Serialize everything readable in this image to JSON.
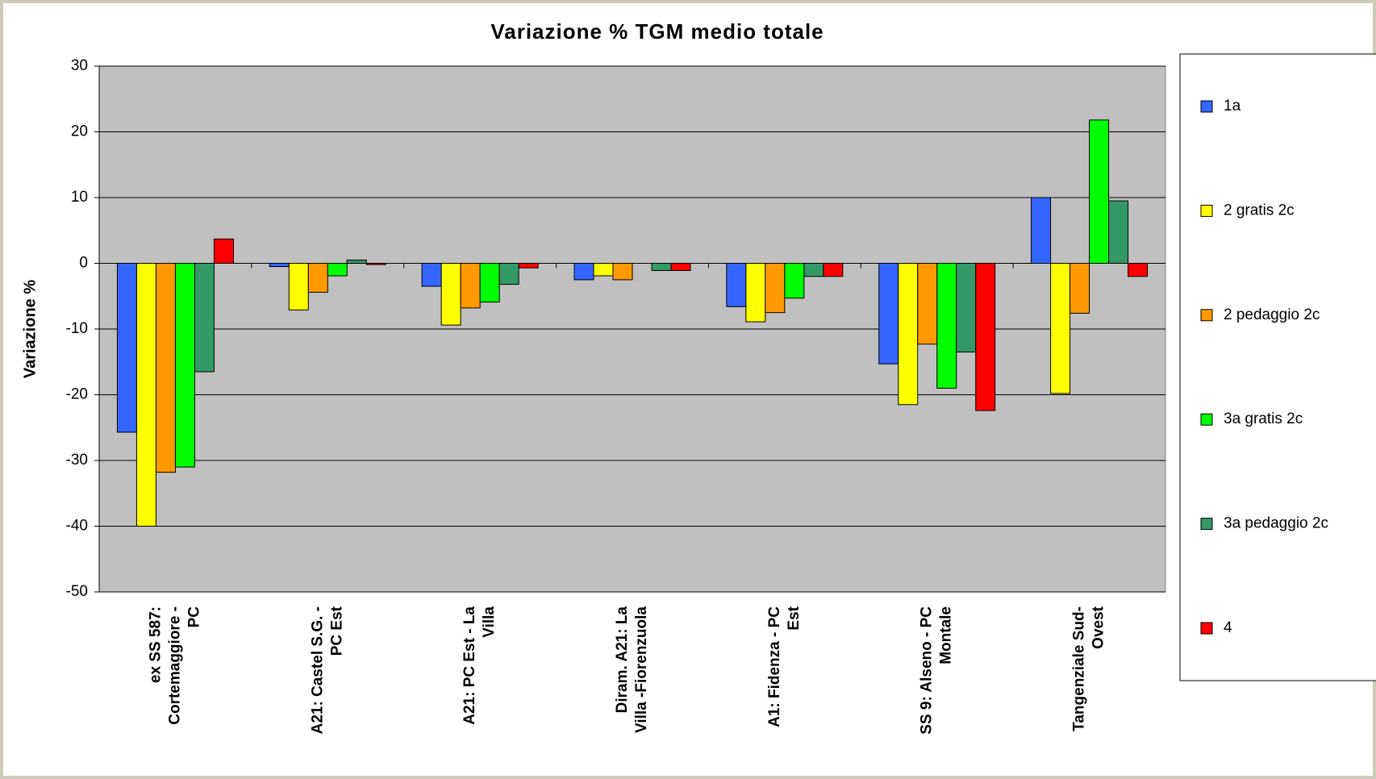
{
  "chart_data": {
    "type": "bar",
    "title": "Variazione % TGM medio totale",
    "y_label": "Variazione %",
    "categories": [
      "ex SS 587:\nCortemaggiore -\nPC",
      "A21: Castel S.G. -\nPC Est",
      "A21: PC Est - La\nVilla",
      "Diram. A21: La\nVilla -Fiorenzuola",
      "A1: Fidenza - PC\nEst",
      "SS 9: Alseno - PC\nMontale",
      "Tangenziale Sud-\nOvest"
    ],
    "series": [
      {
        "name": "1a",
        "color": "#3366ff",
        "values": [
          -25.7,
          -0.5,
          -3.5,
          -2.5,
          -6.6,
          -15.3,
          10
        ]
      },
      {
        "name": "2 gratis 2c",
        "color": "#ffff00",
        "values": [
          -40,
          -7.1,
          -9.4,
          -1.9,
          -8.9,
          -21.5,
          -19.8
        ]
      },
      {
        "name": "2 pedaggio 2c",
        "color": "#ff9900",
        "values": [
          -31.8,
          -4.4,
          -6.8,
          -2.5,
          -7.5,
          -12.3,
          -7.6
        ]
      },
      {
        "name": "3a gratis 2c",
        "color": "#00ff00",
        "values": [
          -31,
          -1.9,
          -5.9,
          0,
          -5.3,
          -19,
          21.8
        ]
      },
      {
        "name": "3a pedaggio 2c",
        "color": "#339966",
        "values": [
          -16.5,
          0.5,
          -3.2,
          -1.1,
          -2,
          -13.5,
          9.5
        ]
      },
      {
        "name": "4",
        "color": "#ff0000",
        "values": [
          3.7,
          -0.2,
          -0.7,
          -1.1,
          -2,
          -22.4,
          -2
        ]
      }
    ],
    "ylim": [
      -50,
      30
    ],
    "yticks": [
      -50,
      -40,
      -30,
      -20,
      -10,
      0,
      10,
      20,
      30
    ],
    "grid": true,
    "legend": "right"
  }
}
